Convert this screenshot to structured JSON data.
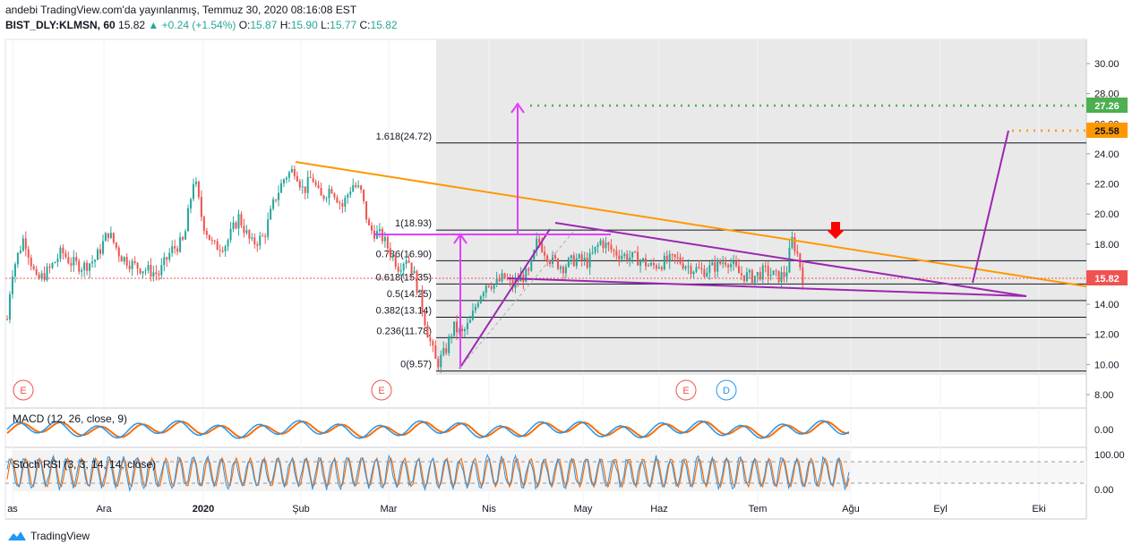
{
  "header": {
    "line1": "andebi TradingView.com'da yayınlanmış, Temmuz 30, 2020 08:16:08 EST",
    "symbol": "BIST_DLY:KLMSN, 60",
    "last": "15.82",
    "change": "▲ +0.24 (+1.54%)",
    "o_label": "O:",
    "o_val": "15.87",
    "h_label": "H:",
    "h_val": "15.90",
    "l_label": "L:",
    "l_val": "15.77",
    "c_label": "C:",
    "c_val": "15.82"
  },
  "footer": {
    "brand": "TradingView",
    "logo_icon": "tradingview-logo-icon"
  },
  "colors": {
    "up": "#26a69a",
    "down": "#ef5350",
    "trend_orange": "#ff9800",
    "purple": "#9c27b0",
    "magenta": "#e040fb",
    "green_level": "#4caf50",
    "macd_line": "#2196f3",
    "signal_line": "#ff6d00",
    "stoch_k": "#2196f3",
    "stoch_d": "#ff6d00"
  },
  "price_axis": {
    "labels": [
      "30.00",
      "28.00",
      "26.00",
      "24.00",
      "22.00",
      "20.00",
      "18.00",
      "16.00",
      "14.00",
      "12.00",
      "10.00",
      "8.00"
    ],
    "last_price_tag": "15.82",
    "target_green": "27.26",
    "target_orange": "25.58"
  },
  "time_axis": [
    "as",
    "Ara",
    "2020",
    "Şub",
    "Mar",
    "Nis",
    "May",
    "Haz",
    "Tem",
    "Ağu",
    "Eyl",
    "Eki"
  ],
  "fib_levels": [
    {
      "label": "1.618(24.72)",
      "price": 24.72
    },
    {
      "label": "1(18.93)",
      "price": 18.93
    },
    {
      "label": "0.786(16.90)",
      "price": 16.9
    },
    {
      "label": "0.618(15.35)",
      "price": 15.35
    },
    {
      "label": "0.5(14.25)",
      "price": 14.25
    },
    {
      "label": "0.382(13.14)",
      "price": 13.14
    },
    {
      "label": "0.236(11.78)",
      "price": 11.78
    },
    {
      "label": "0(9.57)",
      "price": 9.57
    }
  ],
  "event_markers": [
    {
      "letter": "E",
      "kind": "earnings"
    },
    {
      "letter": "E",
      "kind": "earnings"
    },
    {
      "letter": "E",
      "kind": "earnings"
    },
    {
      "letter": "D",
      "kind": "dividend"
    }
  ],
  "macd": {
    "label": "MACD (12, 26, close, 9)",
    "axis": [
      "0.00"
    ]
  },
  "stoch": {
    "label": "Stoch RSI (3, 3, 14, 14, close)",
    "axis": [
      "100.00",
      "0.00"
    ]
  },
  "chart_data": {
    "type": "line",
    "title": "BIST_DLY:KLMSN, 60",
    "xlabel": "",
    "ylabel": "",
    "ylim": [
      8,
      30
    ],
    "x": [
      "Kas",
      "Ara",
      "2020",
      "Şub",
      "Mar",
      "Nis",
      "May",
      "Haz",
      "Tem",
      "Ağu"
    ],
    "series": [
      {
        "values": [
          16.5,
          17.0,
          18.2,
          22.5,
          19.0,
          11.0,
          17.0,
          17.5,
          16.8,
          15.82
        ]
      }
    ],
    "price_path": [
      [
        0,
        13.0
      ],
      [
        0.005,
        16.0
      ],
      [
        0.02,
        18.5
      ],
      [
        0.035,
        15.5
      ],
      [
        0.05,
        16.3
      ],
      [
        0.065,
        17.5
      ],
      [
        0.075,
        16.8
      ],
      [
        0.09,
        16.5
      ],
      [
        0.105,
        17.0
      ],
      [
        0.12,
        18.8
      ],
      [
        0.135,
        17.2
      ],
      [
        0.15,
        16.6
      ],
      [
        0.165,
        16.3
      ],
      [
        0.18,
        16.0
      ],
      [
        0.195,
        17.6
      ],
      [
        0.21,
        18.2
      ],
      [
        0.222,
        22.5
      ],
      [
        0.232,
        19.5
      ],
      [
        0.245,
        17.8
      ],
      [
        0.26,
        18.0
      ],
      [
        0.275,
        19.8
      ],
      [
        0.29,
        18.0
      ],
      [
        0.305,
        18.5
      ],
      [
        0.318,
        21.0
      ],
      [
        0.33,
        22.5
      ],
      [
        0.342,
        23.0
      ],
      [
        0.352,
        21.5
      ],
      [
        0.362,
        22.5
      ],
      [
        0.372,
        21.0
      ],
      [
        0.385,
        21.8
      ],
      [
        0.398,
        20.5
      ],
      [
        0.41,
        22.0
      ],
      [
        0.42,
        21.5
      ],
      [
        0.43,
        19.0
      ],
      [
        0.445,
        18.5
      ],
      [
        0.455,
        17.5
      ],
      [
        0.465,
        16.5
      ],
      [
        0.475,
        17.2
      ],
      [
        0.483,
        16.0
      ],
      [
        0.49,
        14.5
      ],
      [
        0.5,
        12.0
      ],
      [
        0.51,
        10.0
      ],
      [
        0.52,
        10.8
      ],
      [
        0.53,
        12.5
      ],
      [
        0.54,
        12.0
      ],
      [
        0.55,
        12.8
      ],
      [
        0.56,
        14.5
      ],
      [
        0.57,
        15.5
      ],
      [
        0.58,
        15.3
      ],
      [
        0.59,
        15.8
      ],
      [
        0.6,
        15.2
      ],
      [
        0.61,
        15.8
      ],
      [
        0.62,
        16.0
      ],
      [
        0.63,
        18.3
      ],
      [
        0.645,
        17.0
      ],
      [
        0.66,
        16.5
      ],
      [
        0.675,
        17.0
      ],
      [
        0.69,
        16.8
      ],
      [
        0.705,
        18.2
      ],
      [
        0.72,
        17.5
      ],
      [
        0.735,
        17.2
      ],
      [
        0.75,
        17.0
      ],
      [
        0.765,
        16.5
      ],
      [
        0.78,
        16.8
      ],
      [
        0.795,
        17.0
      ],
      [
        0.81,
        16.5
      ],
      [
        0.825,
        16.2
      ],
      [
        0.84,
        16.5
      ],
      [
        0.855,
        17.0
      ],
      [
        0.87,
        16.0
      ],
      [
        0.885,
        15.8
      ],
      [
        0.9,
        16.2
      ],
      [
        0.915,
        15.8
      ],
      [
        0.925,
        16.0
      ],
      [
        0.932,
        18.3
      ],
      [
        0.938,
        17.5
      ],
      [
        0.945,
        15.82
      ]
    ]
  }
}
